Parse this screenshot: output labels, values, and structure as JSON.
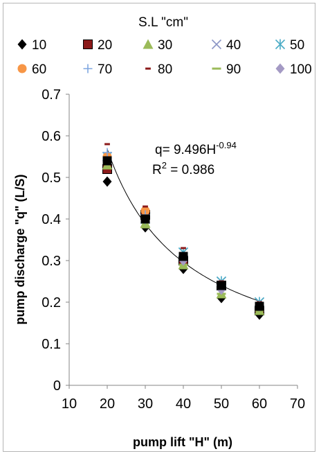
{
  "chart_data": {
    "type": "scatter",
    "legend": {
      "title": "S.L \"cm\"",
      "placement": "top"
    },
    "xlabel": "pump lift \"H\" (m)",
    "ylabel": "pump discharge \"q\" (L/S)",
    "xlim": [
      10,
      70
    ],
    "ylim": [
      0,
      0.7
    ],
    "xticks": [
      "10",
      "20",
      "30",
      "40",
      "50",
      "60",
      "70"
    ],
    "yticks": [
      "0",
      "0.1",
      "0.2",
      "0.3",
      "0.4",
      "0.5",
      "0.6",
      "0.7"
    ],
    "grid": false,
    "series": [
      {
        "name": "10",
        "marker": "diamond",
        "color": "#000000",
        "points": [
          [
            20,
            0.49
          ],
          [
            30,
            0.38
          ],
          [
            40,
            0.28
          ],
          [
            50,
            0.21
          ],
          [
            60,
            0.17
          ]
        ]
      },
      {
        "name": "20",
        "marker": "square",
        "color": "#8b1a1a",
        "points": [
          [
            20,
            0.52
          ],
          [
            30,
            0.41
          ],
          [
            40,
            0.3
          ],
          [
            50,
            0.24
          ],
          [
            60,
            0.18
          ]
        ]
      },
      {
        "name": "30",
        "marker": "triangle",
        "color": "#9bbb59",
        "points": [
          [
            20,
            0.53
          ],
          [
            30,
            0.39
          ],
          [
            40,
            0.29
          ],
          [
            50,
            0.22
          ],
          [
            60,
            0.18
          ]
        ]
      },
      {
        "name": "40",
        "marker": "x",
        "color": "#8c96c6",
        "points": [
          [
            20,
            0.55
          ],
          [
            30,
            0.4
          ],
          [
            40,
            0.32
          ],
          [
            50,
            0.25
          ],
          [
            60,
            0.2
          ]
        ]
      },
      {
        "name": "50",
        "marker": "star",
        "color": "#4bacc6",
        "points": [
          [
            20,
            0.55
          ],
          [
            30,
            0.4
          ],
          [
            40,
            0.32
          ],
          [
            50,
            0.25
          ],
          [
            60,
            0.2
          ]
        ]
      },
      {
        "name": "60",
        "marker": "circle",
        "color": "#f79646",
        "points": [
          [
            20,
            0.55
          ],
          [
            30,
            0.42
          ],
          [
            40,
            0.31
          ],
          [
            50,
            0.24
          ],
          [
            60,
            0.19
          ]
        ]
      },
      {
        "name": "70",
        "marker": "plus",
        "color": "#7ea6e0",
        "points": [
          [
            20,
            0.56
          ],
          [
            30,
            0.41
          ],
          [
            40,
            0.31
          ],
          [
            50,
            0.24
          ],
          [
            60,
            0.19
          ]
        ]
      },
      {
        "name": "80",
        "marker": "dash",
        "color": "#8b1a1a",
        "points": [
          [
            20,
            0.58
          ],
          [
            30,
            0.43
          ],
          [
            40,
            0.33
          ],
          [
            50,
            0.25
          ],
          [
            60,
            0.2
          ]
        ]
      },
      {
        "name": "90",
        "marker": "hline",
        "color": "#9bbb59",
        "points": [
          [
            20,
            0.54
          ],
          [
            30,
            0.38
          ],
          [
            40,
            0.29
          ],
          [
            50,
            0.22
          ],
          [
            60,
            0.18
          ]
        ]
      },
      {
        "name": "100",
        "marker": "diamond",
        "color": "#a49ac4",
        "points": [
          [
            20,
            0.54
          ],
          [
            30,
            0.4
          ],
          [
            40,
            0.3
          ],
          [
            50,
            0.23
          ],
          [
            60,
            0.19
          ]
        ]
      },
      {
        "name": "",
        "marker": "square",
        "color": "#000000",
        "points": [
          [
            20,
            0.54
          ],
          [
            30,
            0.4
          ],
          [
            40,
            0.31
          ],
          [
            50,
            0.24
          ],
          [
            60,
            0.19
          ]
        ]
      }
    ],
    "trendline": {
      "type": "power",
      "a": 9.496,
      "b": -0.94,
      "x_range": [
        20,
        60
      ],
      "color": "#000000"
    },
    "annotations": {
      "equation_base": "q= 9.496H",
      "equation_exp": "-0.94",
      "r2_prefix": "R",
      "r2_sup": "2",
      "r2_rest": " = 0.986"
    }
  }
}
